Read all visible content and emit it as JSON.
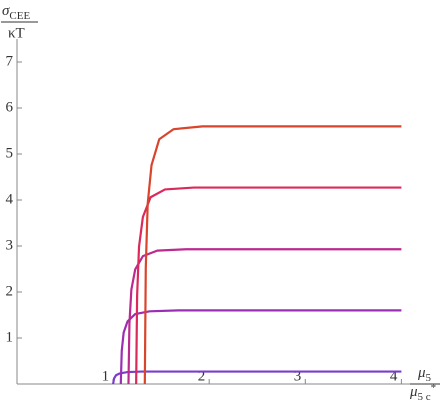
{
  "chart_data": {
    "type": "line",
    "y_label": {
      "numerator": "σ",
      "numerator_sub": "CEE",
      "denominator": "κT"
    },
    "x_label": {
      "numerator": "μ",
      "numerator_sub": "5",
      "denominator": "μ",
      "denominator_sub": "5 c",
      "denominator_sup": "*"
    },
    "xlim": [
      0,
      4.1
    ],
    "xticks": [
      1,
      2,
      3,
      4
    ],
    "ylim": [
      0,
      7.5
    ],
    "yticks": [
      1,
      2,
      3,
      4,
      5,
      6,
      7
    ],
    "series": [
      {
        "color": "#7b3ccb",
        "x": [
          1.0,
          1.01,
          1.03,
          1.07,
          1.15,
          1.3,
          1.6,
          4
        ],
        "values": [
          0,
          0.12,
          0.19,
          0.23,
          0.26,
          0.27,
          0.27,
          0.27
        ]
      },
      {
        "color": "#9a2fb4",
        "x": [
          1.08,
          1.09,
          1.11,
          1.15,
          1.23,
          1.38,
          1.68,
          4
        ],
        "values": [
          0,
          0.72,
          1.12,
          1.36,
          1.52,
          1.58,
          1.6,
          1.6
        ]
      },
      {
        "color": "#bb2a8e",
        "x": [
          1.16,
          1.17,
          1.19,
          1.23,
          1.31,
          1.46,
          1.76,
          4
        ],
        "values": [
          0,
          1.32,
          2.05,
          2.49,
          2.78,
          2.9,
          2.93,
          2.93
        ]
      },
      {
        "color": "#d92a5a",
        "x": [
          1.24,
          1.25,
          1.27,
          1.31,
          1.39,
          1.54,
          1.84,
          4
        ],
        "values": [
          0,
          1.92,
          2.99,
          3.63,
          4.06,
          4.23,
          4.27,
          4.27
        ]
      },
      {
        "color": "#d9442c",
        "x": [
          1.33,
          1.34,
          1.36,
          1.4,
          1.48,
          1.63,
          1.93,
          4
        ],
        "values": [
          0,
          2.52,
          3.92,
          4.76,
          5.32,
          5.54,
          5.6,
          5.6
        ]
      }
    ]
  }
}
